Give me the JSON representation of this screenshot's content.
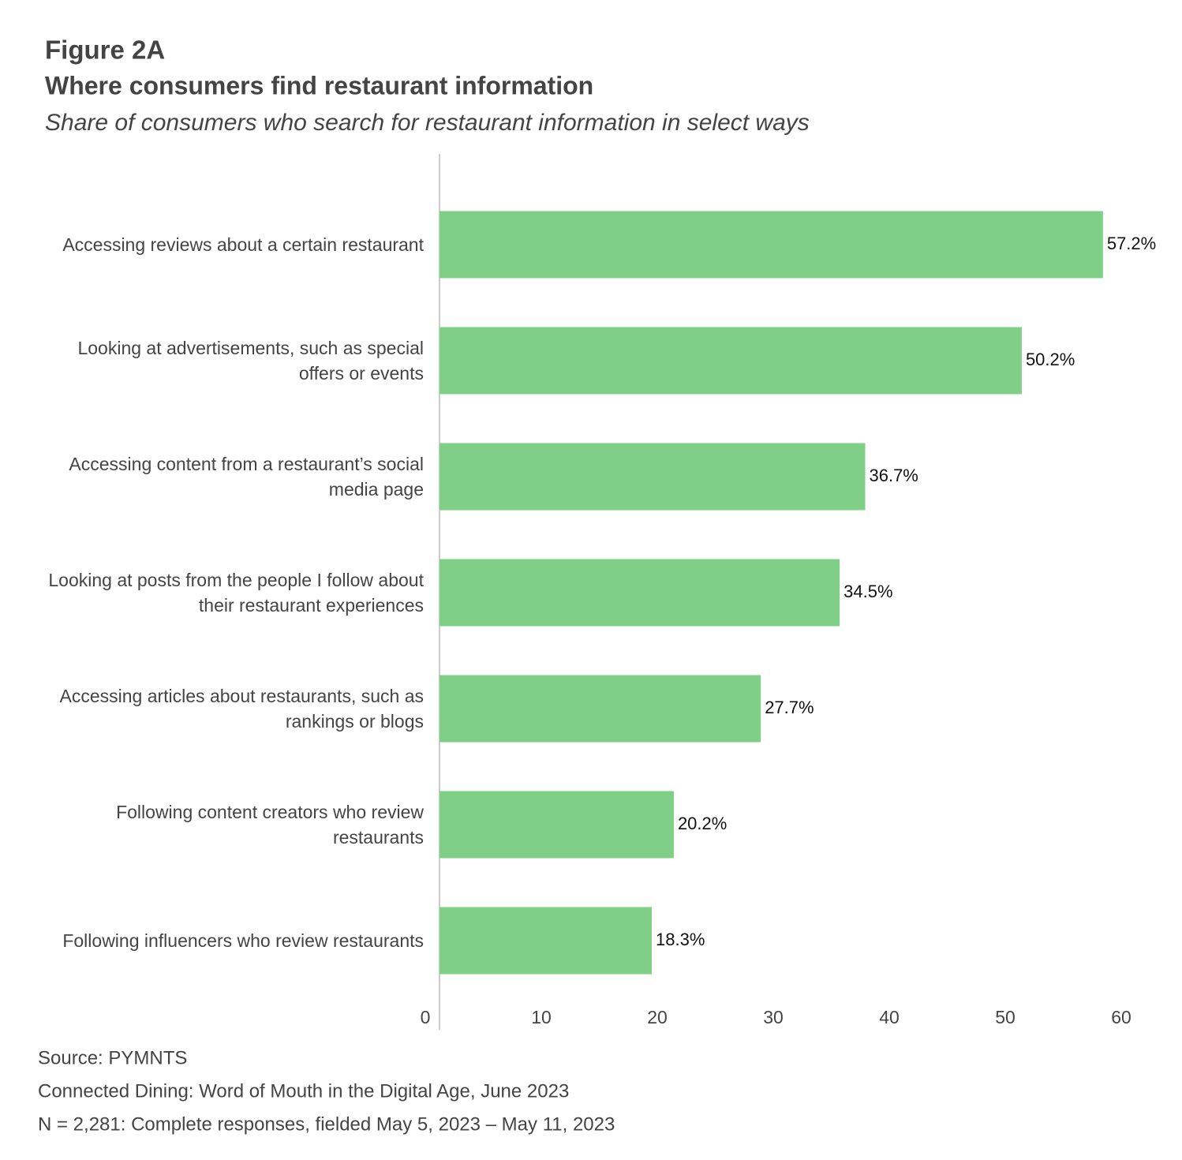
{
  "chart_data": {
    "type": "bar",
    "orientation": "horizontal",
    "title": "Figure 2A",
    "subtitle": "Where consumers find restaurant information",
    "description": "Share of consumers who search for restaurant information in select ways",
    "categories": [
      "Accessing reviews about a certain restaurant",
      "Looking at advertisements, such as special offers or events",
      "Accessing content from a restaurant’s social media page",
      "Looking at posts from the people I follow about their restaurant experiences",
      "Accessing articles about restaurants, such as rankings or blogs",
      "Following content creators who review restaurants",
      "Following influencers who review restaurants"
    ],
    "values": [
      57.2,
      50.2,
      36.7,
      34.5,
      27.7,
      20.2,
      18.3
    ],
    "value_labels": [
      "57.2%",
      "50.2%",
      "36.7%",
      "34.5%",
      "27.7%",
      "20.2%",
      "18.3%"
    ],
    "color": "#7fcf87",
    "xlim": [
      0,
      60
    ],
    "xticks": [
      0,
      10,
      20,
      30,
      40,
      50,
      60
    ],
    "notes": [
      "Source: PYMNTS",
      "Connected Dining: Word of Mouth in the Digital Age, June 2023",
      "N = 2,281: Complete responses, fielded May 5, 2023 – May 11, 2023"
    ]
  }
}
